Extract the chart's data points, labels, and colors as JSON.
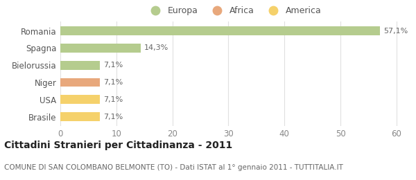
{
  "categories": [
    "Brasile",
    "USA",
    "Niger",
    "Bielorussia",
    "Spagna",
    "Romania"
  ],
  "values": [
    7.1,
    7.1,
    7.1,
    7.1,
    14.3,
    57.1
  ],
  "labels": [
    "7,1%",
    "7,1%",
    "7,1%",
    "7,1%",
    "14,3%",
    "57,1%"
  ],
  "colors": [
    "#f5d16b",
    "#f5d16b",
    "#e8a87c",
    "#b5cc8e",
    "#b5cc8e",
    "#b5cc8e"
  ],
  "legend_items": [
    {
      "label": "Europa",
      "color": "#b5cc8e"
    },
    {
      "label": "Africa",
      "color": "#e8a87c"
    },
    {
      "label": "America",
      "color": "#f5d16b"
    }
  ],
  "xlim": [
    0,
    62
  ],
  "xticks": [
    0,
    10,
    20,
    30,
    40,
    50,
    60
  ],
  "title": "Cittadini Stranieri per Cittadinanza - 2011",
  "subtitle": "COMUNE DI SAN COLOMBANO BELMONTE (TO) - Dati ISTAT al 1° gennaio 2011 - TUTTITALIA.IT",
  "background_color": "#ffffff",
  "grid_color": "#e0e0e0",
  "bar_height": 0.52,
  "title_fontsize": 10,
  "subtitle_fontsize": 7.5,
  "label_fontsize": 8,
  "ytick_fontsize": 8.5,
  "xtick_fontsize": 8.5,
  "legend_fontsize": 9
}
